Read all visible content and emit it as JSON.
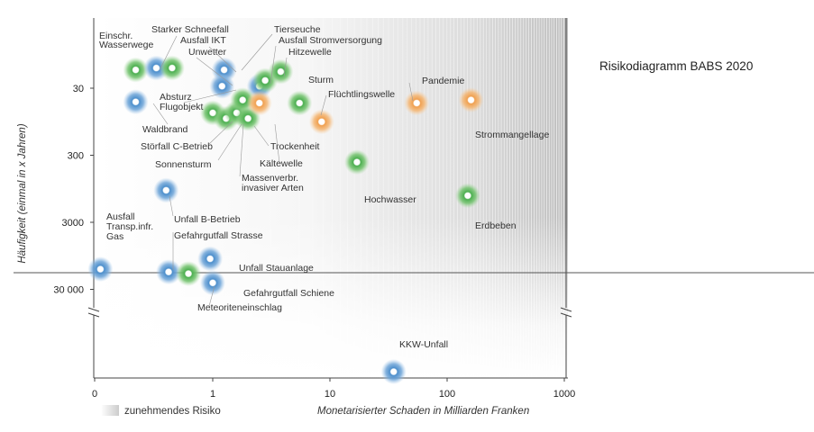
{
  "chart_data": {
    "type": "scatter",
    "title": "Risikodiagramm BABS 2020",
    "xlabel": "Monetarisierter Schaden in Milliarden Franken",
    "ylabel": "Häufigkeit (einmal in x Jahren)",
    "x_scale": "log",
    "y_scale": "log",
    "xlim": [
      0.1,
      1000
    ],
    "x_ticks": [
      "0",
      "1",
      "10",
      "100",
      "1000"
    ],
    "y_ticks": [
      "30",
      "300",
      "3000",
      "30 000"
    ],
    "legend_note": "zunehmendes Risiko",
    "colors": {
      "blue": "#4d8fcc",
      "green": "#4caf50",
      "orange": "#f0a050",
      "halo": "#ffffff"
    },
    "points": [
      {
        "label": "Einschr. Wasserwege",
        "x": 0.22,
        "y": 16,
        "color": "green"
      },
      {
        "label": "Starker Schneefall",
        "x": 0.33,
        "y": 15,
        "color": "blue"
      },
      {
        "label": "Starker Schneefall",
        "x": 0.45,
        "y": 15,
        "color": "green"
      },
      {
        "label": "Ausfall IKT",
        "x": 1.25,
        "y": 16,
        "color": "blue"
      },
      {
        "label": "Unwetter",
        "x": 1.2,
        "y": 28,
        "color": "blue"
      },
      {
        "label": "Tierseuche",
        "x": 2.5,
        "y": 28,
        "color": "blue"
      },
      {
        "label": "Ausfall Stromversorgung",
        "x": 2.8,
        "y": 23,
        "color": "green"
      },
      {
        "label": "Hitzewelle",
        "x": 3.8,
        "y": 17,
        "color": "green"
      },
      {
        "label": "Absturz Flugobjekt",
        "x": 0.22,
        "y": 48,
        "color": "blue"
      },
      {
        "label": "Waldbrand",
        "x": 1.0,
        "y": 70,
        "color": "green"
      },
      {
        "label": "Störfall C-Betrieb",
        "x": 1.3,
        "y": 85,
        "color": "green"
      },
      {
        "label": "Sonnensturm",
        "x": 1.6,
        "y": 70,
        "color": "green"
      },
      {
        "label": "Massenverbr. invasiver Arten",
        "x": 1.8,
        "y": 45,
        "color": "green"
      },
      {
        "label": "Massenverbr. invasiver Arten",
        "x": 2.0,
        "y": 85,
        "color": "green"
      },
      {
        "label": "Kältewelle",
        "x": 2.5,
        "y": 50,
        "color": "orange"
      },
      {
        "label": "Sturm",
        "x": 5.5,
        "y": 50,
        "color": "green"
      },
      {
        "label": "Trockenheit",
        "x": 8.5,
        "y": 95,
        "color": "orange"
      },
      {
        "label": "Flüchtlingswelle",
        "x": 55,
        "y": 50,
        "color": "orange"
      },
      {
        "label": "Pandemie",
        "x": 160,
        "y": 45,
        "color": "orange"
      },
      {
        "label": "Hochwasser",
        "x": 17,
        "y": 380,
        "color": "green"
      },
      {
        "label": "Erdbeben",
        "x": 150,
        "y": 1200,
        "color": "green"
      },
      {
        "label": "Unfall B-Betrieb",
        "x": 0.4,
        "y": 1000,
        "color": "blue"
      },
      {
        "label": "Gefahrgutfall Strasse",
        "x": 0.95,
        "y": 10500,
        "color": "blue"
      },
      {
        "label": "Ausfall Transp.infr. Gas",
        "x": 0.11,
        "y": 15000,
        "color": "blue"
      },
      {
        "label": "Unfall Stauanlage",
        "x": 0.42,
        "y": 16500,
        "color": "blue"
      },
      {
        "label": "Gefahrgutfall Schiene",
        "x": 0.62,
        "y": 17500,
        "color": "green"
      },
      {
        "label": "Meteoriteneinschlag",
        "x": 1.0,
        "y": 24000,
        "color": "blue"
      },
      {
        "label": "KKW-Unfall",
        "x": 35,
        "y": null,
        "color": "blue"
      }
    ],
    "point_labels": [
      "Einschr.",
      "Wasserwege",
      "Starker Schneefall",
      "Ausfall IKT",
      "Unwetter",
      "Tierseuche",
      "Ausfall Stromversorgung",
      "Hitzewelle",
      "Sturm",
      "Pandemie",
      "Flüchtlingswelle",
      "Absturz",
      "Flugobjekt",
      "Waldbrand",
      "Störfall C-Betrieb",
      "Sonnensturm",
      "Massenverbr.",
      "invasiver Arten",
      "Trockenheit",
      "Kältewelle",
      "Strommangellage",
      "Hochwasser",
      "Erdbeben",
      "Ausfall",
      "Transp.infr.",
      "Gas",
      "Unfall B-Betrieb",
      "Gefahrgutfall Strasse",
      "Unfall Stauanlage",
      "Gefahrgutfall Schiene",
      "Meteoriteneinschlag",
      "KKW-Unfall"
    ]
  }
}
